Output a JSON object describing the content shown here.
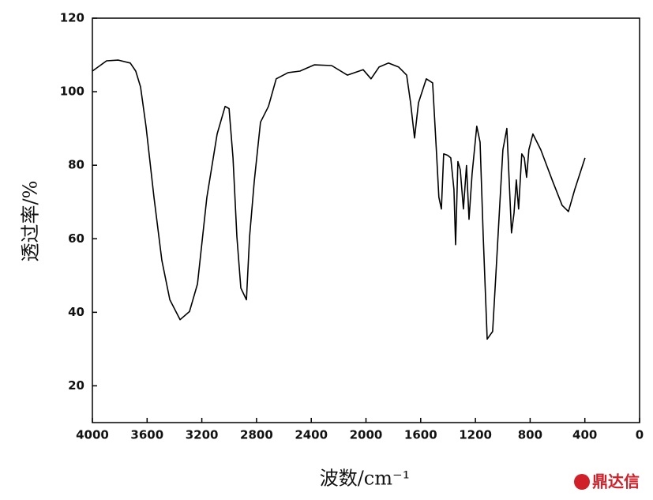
{
  "chart_data": {
    "type": "line",
    "y_label": "透过率/%",
    "x_label": "波数/cm⁻¹",
    "watermark": "鼎达信",
    "color": "#000000",
    "x": [
      4000,
      3896,
      3810,
      3723,
      3683,
      3648,
      3608,
      3550,
      3492,
      3434,
      3359,
      3290,
      3232,
      3163,
      3088,
      3030,
      3001,
      2972,
      2944,
      2915,
      2874,
      2851,
      2817,
      2771,
      2713,
      2656,
      2569,
      2482,
      2378,
      2251,
      2136,
      2021,
      1963,
      1905,
      1836,
      1761,
      1703,
      1674,
      1645,
      1616,
      1559,
      1513,
      1484,
      1467,
      1449,
      1432,
      1403,
      1380,
      1357,
      1345,
      1328,
      1311,
      1288,
      1265,
      1247,
      1224,
      1190,
      1166,
      1143,
      1114,
      1074,
      1051,
      1022,
      999,
      970,
      953,
      936,
      918,
      901,
      884,
      861,
      843,
      826,
      809,
      780,
      722,
      635,
      566,
      520,
      474,
      399
    ],
    "values": [
      105.6,
      108.4,
      108.6,
      107.8,
      105.6,
      101.3,
      90.6,
      71.3,
      54.1,
      43.4,
      38,
      40.2,
      47.7,
      71.3,
      88.5,
      96,
      95.4,
      82,
      60.6,
      46.6,
      43.4,
      60.6,
      75.6,
      91.7,
      96,
      103.5,
      105.2,
      105.6,
      107.3,
      107.1,
      104.5,
      106,
      103.5,
      106.7,
      107.8,
      106.7,
      104.5,
      97,
      87.4,
      97,
      103.5,
      102.4,
      83.1,
      71.3,
      68.1,
      83.1,
      82.7,
      82,
      73.4,
      58.4,
      81,
      78.8,
      68.1,
      79.9,
      65.3,
      77.7,
      90.6,
      86.3,
      60.6,
      32.7,
      34.8,
      49.8,
      69.1,
      84.2,
      90,
      75.6,
      61.6,
      67,
      76,
      68.1,
      83.1,
      82,
      76.7,
      84.2,
      88.5,
      84.2,
      75.6,
      69.1,
      67.4,
      73.4,
      82
    ],
    "xlim": [
      4000,
      0
    ],
    "ylim": [
      10,
      120
    ],
    "xticks": [
      4000,
      3600,
      3200,
      2800,
      2400,
      2000,
      1600,
      1200,
      800,
      400,
      0
    ],
    "yticks": [
      20,
      40,
      60,
      80,
      100,
      120
    ]
  }
}
